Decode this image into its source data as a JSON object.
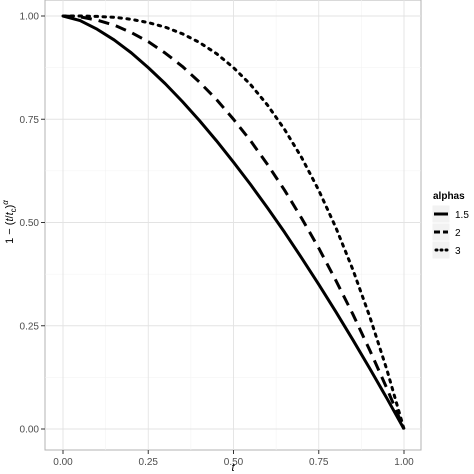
{
  "chart_data": {
    "type": "line",
    "xlabel": "t",
    "ylabel_parts": {
      "pre": "1 − (",
      "t": "t",
      "slash": "/",
      "tc": "t",
      "tc_sub": "c",
      "close": ")",
      "alpha": "α"
    },
    "xlim": [
      0,
      1
    ],
    "ylim": [
      0,
      1
    ],
    "x_ticks": [
      0,
      0.25,
      0.5,
      0.75,
      1
    ],
    "x_tick_labels": [
      "0.00",
      "0.25",
      "0.50",
      "0.75",
      "1.00"
    ],
    "y_ticks": [
      0,
      0.25,
      0.5,
      0.75,
      1
    ],
    "y_tick_labels": [
      "0.00",
      "0.25",
      "0.50",
      "0.75",
      "1.00"
    ],
    "grid": true,
    "legend": {
      "title": "alphas",
      "placement": "right"
    },
    "series": [
      {
        "name": "1.5",
        "alpha": 1.5,
        "line_style": "solid",
        "x": [
          0,
          0.05,
          0.1,
          0.15,
          0.2,
          0.25,
          0.3,
          0.35,
          0.4,
          0.45,
          0.5,
          0.55,
          0.6,
          0.65,
          0.7,
          0.75,
          0.8,
          0.85,
          0.9,
          0.95,
          1
        ],
        "y": [
          1,
          0.989,
          0.968,
          0.942,
          0.911,
          0.875,
          0.836,
          0.793,
          0.747,
          0.698,
          0.646,
          0.592,
          0.535,
          0.476,
          0.414,
          0.35,
          0.284,
          0.216,
          0.146,
          0.074,
          0
        ]
      },
      {
        "name": "2",
        "alpha": 2,
        "line_style": "dashed",
        "x": [
          0,
          0.05,
          0.1,
          0.15,
          0.2,
          0.25,
          0.3,
          0.35,
          0.4,
          0.45,
          0.5,
          0.55,
          0.6,
          0.65,
          0.7,
          0.75,
          0.8,
          0.85,
          0.9,
          0.95,
          1
        ],
        "y": [
          1,
          0.998,
          0.99,
          0.978,
          0.96,
          0.938,
          0.91,
          0.878,
          0.84,
          0.798,
          0.75,
          0.698,
          0.64,
          0.578,
          0.51,
          0.438,
          0.36,
          0.278,
          0.19,
          0.098,
          0
        ]
      },
      {
        "name": "3",
        "alpha": 3,
        "line_style": "dotted",
        "x": [
          0,
          0.05,
          0.1,
          0.15,
          0.2,
          0.25,
          0.3,
          0.35,
          0.4,
          0.45,
          0.5,
          0.55,
          0.6,
          0.65,
          0.7,
          0.75,
          0.8,
          0.85,
          0.9,
          0.95,
          1
        ],
        "y": [
          1,
          1,
          0.999,
          0.997,
          0.992,
          0.984,
          0.973,
          0.957,
          0.936,
          0.909,
          0.875,
          0.834,
          0.784,
          0.725,
          0.657,
          0.578,
          0.488,
          0.386,
          0.271,
          0.143,
          0
        ]
      }
    ]
  }
}
